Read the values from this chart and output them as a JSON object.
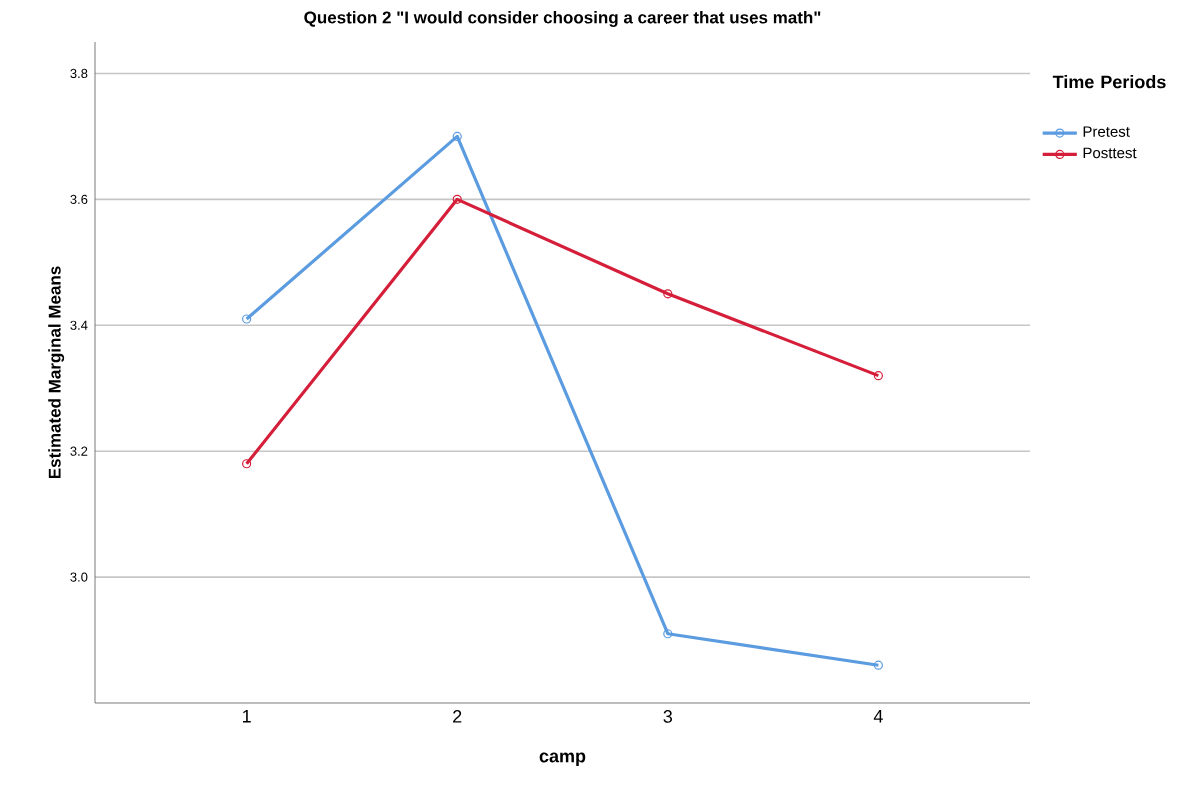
{
  "chart_data": {
    "type": "line",
    "title": "Question 2 \"I would consider choosing a career that uses math\"",
    "xlabel": "camp",
    "ylabel": "Estimated Marginal Means",
    "legend_title": "Time Periods",
    "categories": [
      "1",
      "2",
      "3",
      "4"
    ],
    "series": [
      {
        "name": "Pretest",
        "color": "#5b9be0",
        "values": [
          3.41,
          3.7,
          2.91,
          2.86
        ]
      },
      {
        "name": "Posttest",
        "color": "#d51f3a",
        "values": [
          3.18,
          3.6,
          3.45,
          3.32
        ]
      }
    ],
    "ylim": [
      2.8,
      3.85
    ],
    "yticks": [
      {
        "value": 3,
        "label": "3.0"
      },
      3.2,
      3.4,
      3.6,
      3.8
    ],
    "grid": "y",
    "legend": "top right",
    "marker": "circle",
    "line_style": "solid"
  }
}
